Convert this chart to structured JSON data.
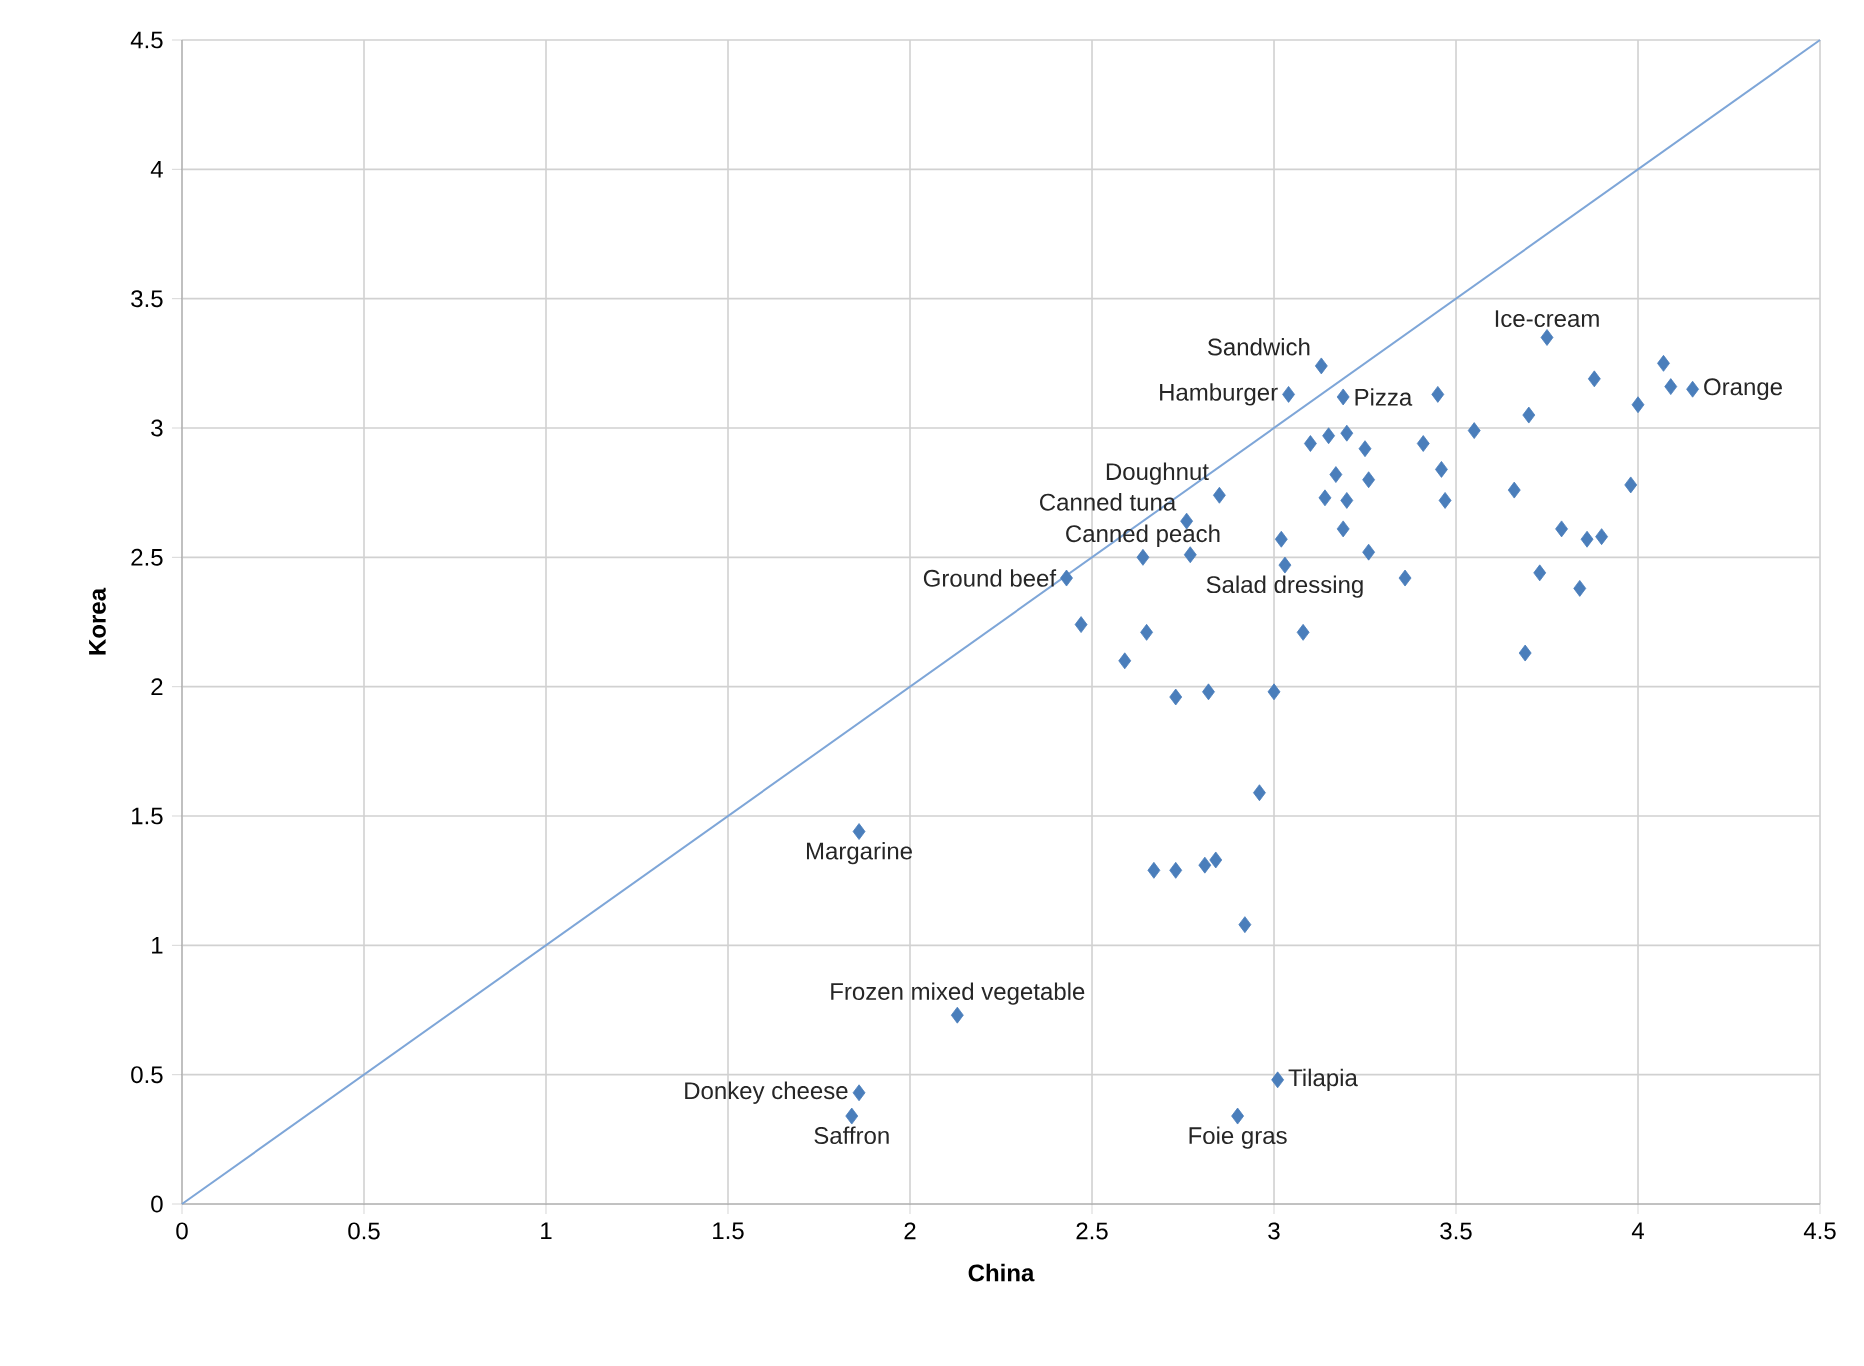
{
  "chart_data": {
    "type": "scatter",
    "xlabel": "China",
    "ylabel": "Korea",
    "xlim": [
      0,
      4.5
    ],
    "ylim": [
      0,
      4.5
    ],
    "xticks": [
      0,
      0.5,
      1,
      1.5,
      2,
      2.5,
      3,
      3.5,
      4,
      4.5
    ],
    "yticks": [
      0,
      0.5,
      1,
      1.5,
      2,
      2.5,
      3,
      3.5,
      4,
      4.5
    ],
    "grid": true,
    "series": [
      {
        "marker": "diamond",
        "color": "#4a7ebb",
        "x": [
          3.75,
          3.13,
          3.04,
          3.19,
          3.45,
          3.88,
          4.07,
          4.09,
          4.15,
          4.0,
          3.7,
          3.55,
          3.1,
          3.15,
          3.2,
          3.25,
          3.41,
          3.46,
          3.47,
          3.17,
          3.14,
          3.2,
          3.26,
          2.85,
          2.76,
          3.19,
          3.02,
          3.03,
          3.26,
          3.36,
          3.66,
          3.98,
          3.79,
          3.86,
          3.9,
          2.64,
          2.77,
          2.43,
          3.73,
          3.84,
          2.47,
          2.65,
          3.08,
          3.69,
          2.59,
          2.73,
          2.82,
          3.0,
          1.86,
          2.96,
          2.67,
          2.73,
          2.81,
          2.84,
          2.92,
          2.13,
          1.86,
          1.84,
          3.01,
          2.9
        ],
        "values": [
          3.35,
          3.24,
          3.13,
          3.12,
          3.13,
          3.19,
          3.25,
          3.16,
          3.15,
          3.09,
          3.05,
          2.99,
          2.94,
          2.97,
          2.98,
          2.92,
          2.94,
          2.84,
          2.72,
          2.82,
          2.73,
          2.72,
          2.8,
          2.74,
          2.64,
          2.61,
          2.57,
          2.47,
          2.52,
          2.42,
          2.76,
          2.78,
          2.61,
          2.57,
          2.58,
          2.5,
          2.51,
          2.42,
          2.44,
          2.38,
          2.24,
          2.21,
          2.21,
          2.13,
          2.1,
          1.96,
          1.98,
          1.98,
          1.44,
          1.59,
          1.29,
          1.29,
          1.31,
          1.33,
          1.08,
          0.73,
          0.43,
          0.34,
          0.48,
          0.34
        ]
      },
      {
        "type": "line",
        "marker": "none",
        "color": "#7ea6d8",
        "x": [
          0,
          4.5
        ],
        "values": [
          0,
          4.5
        ]
      }
    ],
    "annotations": [
      {
        "text": "Ice-cream",
        "x": 3.75,
        "y": 3.35
      },
      {
        "text": "Sandwich",
        "x": 3.13,
        "y": 3.24
      },
      {
        "text": "Hamburger",
        "x": 3.04,
        "y": 3.13
      },
      {
        "text": "Pizza",
        "x": 3.19,
        "y": 3.12
      },
      {
        "text": "Orange",
        "x": 4.15,
        "y": 3.15
      },
      {
        "text": "Doughnut",
        "x": 2.85,
        "y": 2.74
      },
      {
        "text": "Canned tuna",
        "x": 2.76,
        "y": 2.64
      },
      {
        "text": "Canned peach",
        "x": 2.64,
        "y": 2.5
      },
      {
        "text": "Ground beef",
        "x": 2.43,
        "y": 2.42
      },
      {
        "text": "Salad dressing",
        "x": 3.03,
        "y": 2.47
      },
      {
        "text": "Margarine",
        "x": 1.86,
        "y": 1.44
      },
      {
        "text": "Frozen mixed vegetable",
        "x": 2.13,
        "y": 0.73
      },
      {
        "text": "Donkey cheese",
        "x": 1.86,
        "y": 0.43
      },
      {
        "text": "Saffron",
        "x": 1.84,
        "y": 0.34
      },
      {
        "text": "Tilapia",
        "x": 3.01,
        "y": 0.48
      },
      {
        "text": "Foie gras",
        "x": 2.9,
        "y": 0.34
      }
    ]
  }
}
